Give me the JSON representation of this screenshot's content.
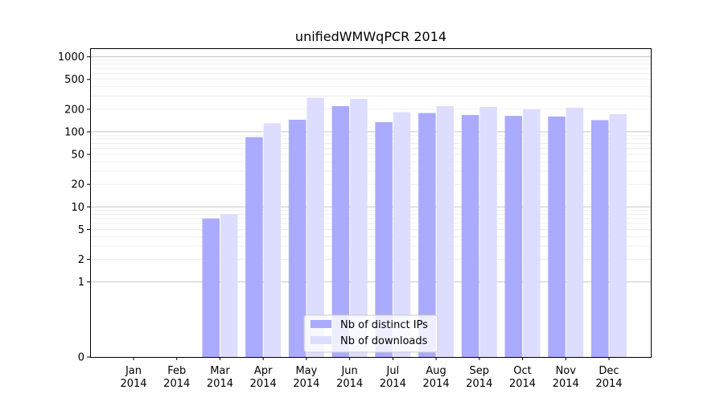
{
  "chart_data": {
    "type": "bar",
    "title": "unifiedWMWqPCR 2014",
    "xlabel": "",
    "ylabel": "",
    "categories": [
      [
        "Jan",
        "2014"
      ],
      [
        "Feb",
        "2014"
      ],
      [
        "Mar",
        "2014"
      ],
      [
        "Apr",
        "2014"
      ],
      [
        "May",
        "2014"
      ],
      [
        "Jun",
        "2014"
      ],
      [
        "Jul",
        "2014"
      ],
      [
        "Aug",
        "2014"
      ],
      [
        "Sep",
        "2014"
      ],
      [
        "Oct",
        "2014"
      ],
      [
        "Nov",
        "2014"
      ],
      [
        "Dec",
        "2014"
      ]
    ],
    "y_scale": "symlog",
    "yticks": [
      0,
      1,
      2,
      5,
      10,
      20,
      50,
      100,
      200,
      500,
      1000
    ],
    "ylim": [
      0,
      1300
    ],
    "series": [
      {
        "name": "Nb of distinct IPs",
        "color": "#aaaaff",
        "values": [
          0,
          0,
          7,
          85,
          145,
          220,
          135,
          178,
          168,
          163,
          160,
          143
        ]
      },
      {
        "name": "Nb of downloads",
        "color": "#ddddff",
        "values": [
          0,
          0,
          8,
          130,
          285,
          275,
          183,
          220,
          215,
          200,
          210,
          172
        ]
      }
    ],
    "legend": {
      "position": "bottom-center"
    },
    "grid": {
      "major_color": "#c0c0c0",
      "minor_color": "#ececec"
    }
  }
}
